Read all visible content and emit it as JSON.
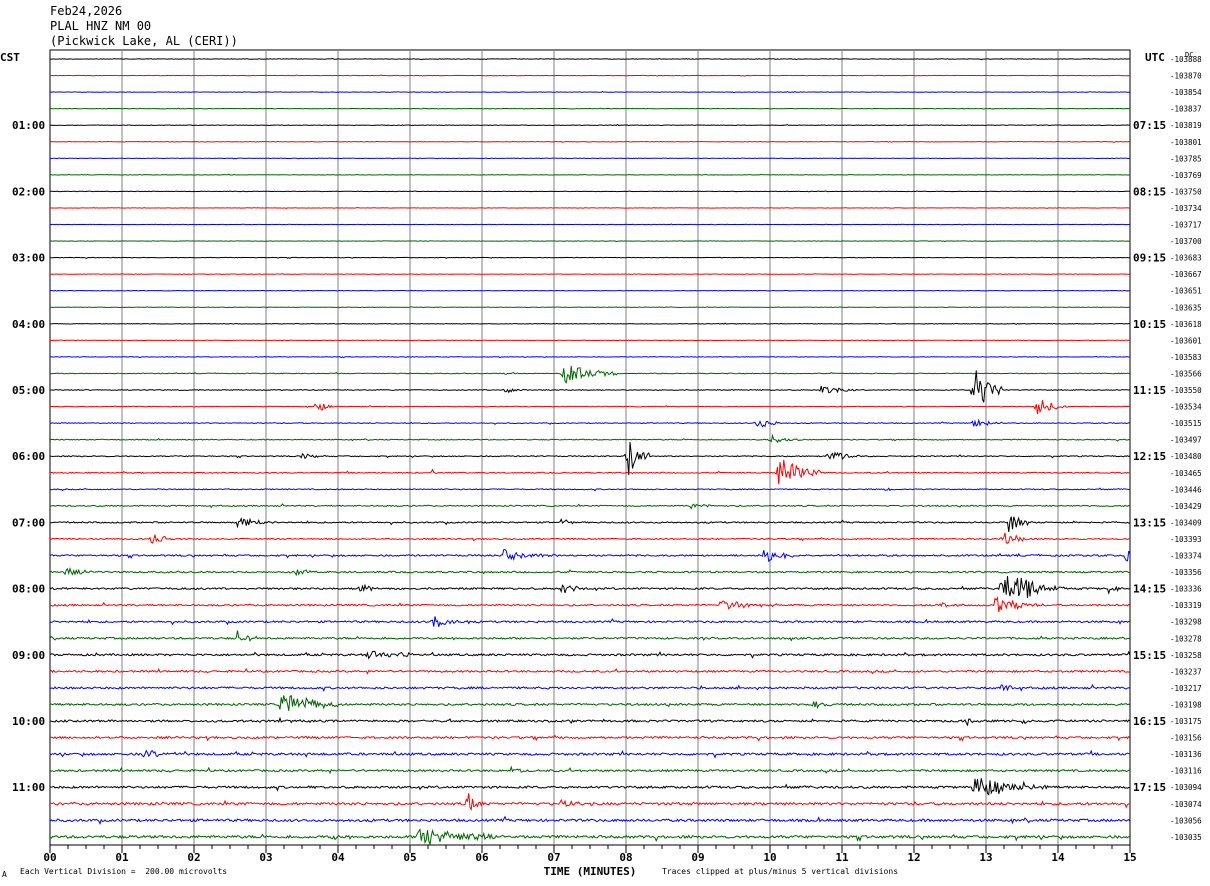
{
  "header": {
    "date": "Feb24,2026",
    "station": "PLAL HNZ NM 00",
    "location": "(Pickwick Lake, AL (CERI))"
  },
  "chart_data": {
    "type": "line",
    "chart_kind": "helicorder seismogram",
    "left_axis_label": "CST",
    "right_axis_label": "UTC",
    "right_offsets_header": "DC",
    "xlabel": "TIME (MINUTES)",
    "xlim": [
      0,
      15
    ],
    "x_ticks": [
      "00",
      "01",
      "02",
      "03",
      "04",
      "05",
      "06",
      "07",
      "08",
      "09",
      "10",
      "11",
      "12",
      "13",
      "14",
      "15"
    ],
    "row_count": 48,
    "trace_colors": [
      "#000000",
      "#ff0000",
      "#0000ff",
      "#006400"
    ],
    "left_time_labels": [
      {
        "row": 4,
        "label": "01:00"
      },
      {
        "row": 8,
        "label": "02:00"
      },
      {
        "row": 12,
        "label": "03:00"
      },
      {
        "row": 16,
        "label": "04:00"
      },
      {
        "row": 20,
        "label": "05:00"
      },
      {
        "row": 24,
        "label": "06:00"
      },
      {
        "row": 28,
        "label": "07:00"
      },
      {
        "row": 32,
        "label": "08:00"
      },
      {
        "row": 36,
        "label": "09:00"
      },
      {
        "row": 40,
        "label": "10:00"
      },
      {
        "row": 44,
        "label": "11:00"
      }
    ],
    "right_time_labels": [
      {
        "row": 4,
        "label": "07:15"
      },
      {
        "row": 8,
        "label": "08:15"
      },
      {
        "row": 12,
        "label": "09:15"
      },
      {
        "row": 16,
        "label": "10:15"
      },
      {
        "row": 20,
        "label": "11:15"
      },
      {
        "row": 24,
        "label": "12:15"
      },
      {
        "row": 28,
        "label": "13:15"
      },
      {
        "row": 32,
        "label": "14:15"
      },
      {
        "row": 36,
        "label": "15:15"
      },
      {
        "row": 40,
        "label": "16:15"
      },
      {
        "row": 44,
        "label": "17:15"
      }
    ],
    "row_offsets": [
      "-103888",
      "-103870",
      "-103854",
      "-103837",
      "-103819",
      "-103801",
      "-103785",
      "-103769",
      "-103750",
      "-103734",
      "-103717",
      "-103700",
      "-103683",
      "-103667",
      "-103651",
      "-103635",
      "-103618",
      "-103601",
      "-103583",
      "-103566",
      "-103550",
      "-103534",
      "-103515",
      "-103497",
      "-103480",
      "-103465",
      "-103446",
      "-103429",
      "-103409",
      "-103393",
      "-103374",
      "-103356",
      "-103336",
      "-103319",
      "-103298",
      "-103278",
      "-103258",
      "-103237",
      "-103217",
      "-103198",
      "-103175",
      "-103156",
      "-103136",
      "-103116",
      "-103094",
      "-103074",
      "-103056",
      "-103035"
    ],
    "noise_levels": [
      0.25,
      0.2,
      0.2,
      0.2,
      0.25,
      0.2,
      0.2,
      0.2,
      0.25,
      0.2,
      0.2,
      0.2,
      0.25,
      0.2,
      0.2,
      0.2,
      0.25,
      0.2,
      0.25,
      0.35,
      0.4,
      0.3,
      0.4,
      0.45,
      0.5,
      0.5,
      0.5,
      0.6,
      0.7,
      0.6,
      0.8,
      0.8,
      0.9,
      0.8,
      0.9,
      0.9,
      1.0,
      0.9,
      1.0,
      1.0,
      1.0,
      1.0,
      1.1,
      1.0,
      1.1,
      1.2,
      1.2,
      1.3
    ],
    "events": [
      {
        "row": 19,
        "t": 7.1,
        "amp": 12,
        "dur": 0.35
      },
      {
        "row": 19,
        "t": 6.3,
        "amp": 2,
        "dur": 0.1
      },
      {
        "row": 20,
        "t": 6.3,
        "amp": 4,
        "dur": 0.15
      },
      {
        "row": 20,
        "t": 10.7,
        "amp": 5,
        "dur": 0.25
      },
      {
        "row": 20,
        "t": 12.8,
        "amp": 30,
        "dur": 0.2
      },
      {
        "row": 21,
        "t": 3.7,
        "amp": 8,
        "dur": 0.1
      },
      {
        "row": 21,
        "t": 13.7,
        "amp": 10,
        "dur": 0.2
      },
      {
        "row": 22,
        "t": 9.8,
        "amp": 8,
        "dur": 0.15
      },
      {
        "row": 22,
        "t": 12.8,
        "amp": 5,
        "dur": 0.2
      },
      {
        "row": 23,
        "t": 10.0,
        "amp": 5,
        "dur": 0.2
      },
      {
        "row": 24,
        "t": 8.0,
        "amp": 26,
        "dur": 0.15
      },
      {
        "row": 24,
        "t": 3.5,
        "amp": 5,
        "dur": 0.1
      },
      {
        "row": 24,
        "t": 10.8,
        "amp": 6,
        "dur": 0.25
      },
      {
        "row": 25,
        "t": 10.1,
        "amp": 18,
        "dur": 0.3
      },
      {
        "row": 25,
        "t": 5.3,
        "amp": 4,
        "dur": 0.05
      },
      {
        "row": 26,
        "t": 11.6,
        "amp": 3,
        "dur": 0.1
      },
      {
        "row": 27,
        "t": 8.9,
        "amp": 4,
        "dur": 0.15
      },
      {
        "row": 28,
        "t": 2.6,
        "amp": 7,
        "dur": 0.25
      },
      {
        "row": 28,
        "t": 7.1,
        "amp": 4,
        "dur": 0.1
      },
      {
        "row": 28,
        "t": 13.3,
        "amp": 12,
        "dur": 0.15
      },
      {
        "row": 29,
        "t": 1.4,
        "amp": 8,
        "dur": 0.15
      },
      {
        "row": 29,
        "t": 13.2,
        "amp": 8,
        "dur": 0.2
      },
      {
        "row": 30,
        "t": 6.3,
        "amp": 6,
        "dur": 0.35
      },
      {
        "row": 30,
        "t": 9.9,
        "amp": 9,
        "dur": 0.2
      },
      {
        "row": 30,
        "t": 14.9,
        "amp": 7,
        "dur": 0.3
      },
      {
        "row": 31,
        "t": 0.2,
        "amp": 5,
        "dur": 0.3
      },
      {
        "row": 31,
        "t": 3.4,
        "amp": 4,
        "dur": 0.15
      },
      {
        "row": 32,
        "t": 13.2,
        "amp": 22,
        "dur": 0.4
      },
      {
        "row": 32,
        "t": 4.3,
        "amp": 7,
        "dur": 0.1
      },
      {
        "row": 32,
        "t": 7.1,
        "amp": 7,
        "dur": 0.15
      },
      {
        "row": 32,
        "t": 14.7,
        "amp": 6,
        "dur": 0.1
      },
      {
        "row": 33,
        "t": 13.1,
        "amp": 10,
        "dur": 0.3
      },
      {
        "row": 33,
        "t": 9.3,
        "amp": 5,
        "dur": 0.4
      },
      {
        "row": 33,
        "t": 12.3,
        "amp": 4,
        "dur": 0.2
      },
      {
        "row": 34,
        "t": 5.3,
        "amp": 8,
        "dur": 0.25
      },
      {
        "row": 35,
        "t": 2.6,
        "amp": 9,
        "dur": 0.15
      },
      {
        "row": 36,
        "t": 4.4,
        "amp": 5,
        "dur": 0.4
      },
      {
        "row": 38,
        "t": 13.2,
        "amp": 6,
        "dur": 0.1
      },
      {
        "row": 39,
        "t": 3.2,
        "amp": 14,
        "dur": 0.4
      },
      {
        "row": 39,
        "t": 10.6,
        "amp": 4,
        "dur": 0.15
      },
      {
        "row": 40,
        "t": 12.7,
        "amp": 6,
        "dur": 0.1
      },
      {
        "row": 40,
        "t": 13.5,
        "amp": 5,
        "dur": 0.1
      },
      {
        "row": 42,
        "t": 1.3,
        "amp": 5,
        "dur": 0.25
      },
      {
        "row": 43,
        "t": 6.4,
        "amp": 4,
        "dur": 0.1
      },
      {
        "row": 44,
        "t": 12.8,
        "amp": 12,
        "dur": 0.5
      },
      {
        "row": 44,
        "t": 3.5,
        "amp": 4,
        "dur": 0.05
      },
      {
        "row": 45,
        "t": 5.8,
        "amp": 12,
        "dur": 0.1
      },
      {
        "row": 45,
        "t": 7.1,
        "amp": 5,
        "dur": 0.2
      },
      {
        "row": 47,
        "t": 5.1,
        "amp": 10,
        "dur": 0.6
      },
      {
        "row": 47,
        "t": 3.9,
        "amp": 5,
        "dur": 0.1
      }
    ]
  },
  "footer": {
    "vertical_division": "Each Vertical Division =  200.00 microvolts",
    "clipping_note": "Traces clipped at plus/minus 5 vertical divisions",
    "corner_mark": "A"
  }
}
